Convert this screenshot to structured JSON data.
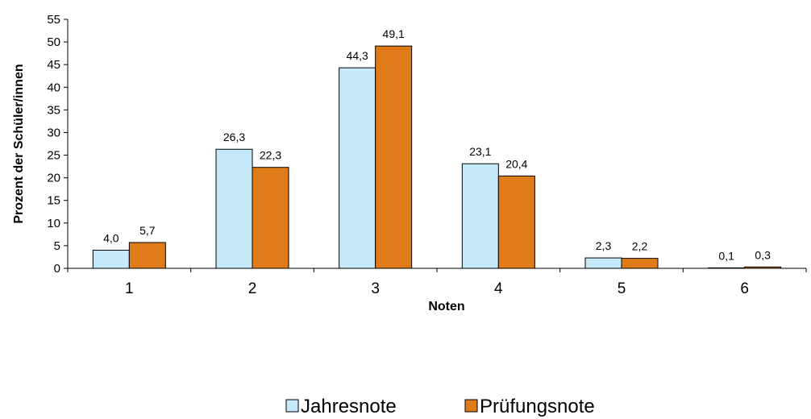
{
  "chart_data": {
    "type": "bar",
    "title": "",
    "xlabel": "Noten",
    "ylabel": "Prozent der Schüler/innen",
    "ylim": [
      0,
      55
    ],
    "yticks": [
      "0",
      "5",
      "10",
      "15",
      "20",
      "25",
      "30",
      "35",
      "40",
      "45",
      "50",
      "55"
    ],
    "categories": [
      "1",
      "2",
      "3",
      "4",
      "5",
      "6"
    ],
    "series": [
      {
        "name": "Jahresnote",
        "values": [
          4.0,
          26.3,
          44.3,
          23.1,
          2.3,
          0.1
        ],
        "labels": [
          "4,0",
          "26,3",
          "44,3",
          "23,1",
          "2,3",
          "0,1"
        ],
        "color": "#C6E9FA"
      },
      {
        "name": "Prüfungsnote",
        "values": [
          5.7,
          22.3,
          49.1,
          20.4,
          2.2,
          0.3
        ],
        "labels": [
          "5,7",
          "22,3",
          "49,1",
          "20,4",
          "2,2",
          "0,3"
        ],
        "color": "#E07B1A"
      }
    ],
    "grid": false,
    "legend": "bottom"
  }
}
